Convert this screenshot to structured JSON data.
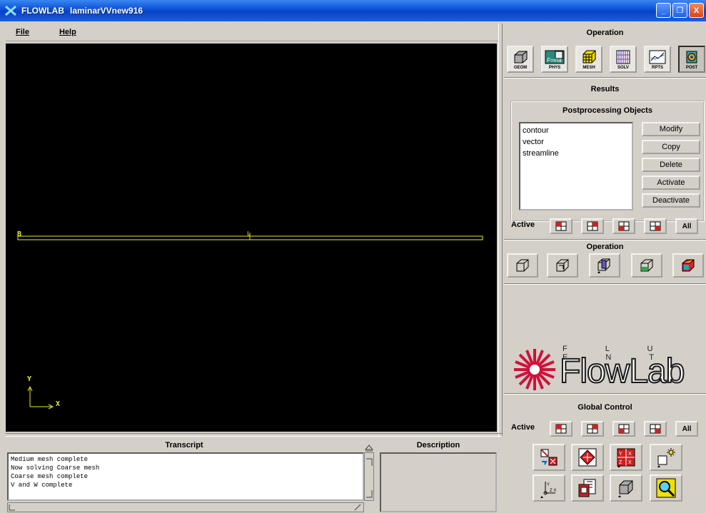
{
  "window": {
    "app_name": "FLOWLAB",
    "file_name": "laminarVVnew916",
    "controls": {
      "minimize": "_",
      "maximize": "❐",
      "close": "X"
    }
  },
  "menubar": {
    "items": [
      "File",
      "Help"
    ]
  },
  "viewport": {
    "point_labels": {
      "left": "B",
      "mid": "L"
    },
    "axes": {
      "y": "Y",
      "x": "X"
    },
    "line_color": "#e8e830",
    "axis_color": "#e8e830",
    "background": "#000000"
  },
  "transcript": {
    "title": "Transcript",
    "lines": [
      "Medium mesh complete",
      "Now solving Coarse mesh",
      "Coarse mesh complete",
      "V and W complete"
    ]
  },
  "description": {
    "title": "Description"
  },
  "right_panel": {
    "operation_title": "Operation",
    "operation_buttons": [
      {
        "label": "GEOM",
        "icon": "cube-icon"
      },
      {
        "label": "PHYS",
        "icon": "physics-icon"
      },
      {
        "label": "MESH",
        "icon": "mesh-cube-icon"
      },
      {
        "label": "SOLV",
        "icon": "solver-grid-icon"
      },
      {
        "label": "RPTS",
        "icon": "reports-chart-icon"
      },
      {
        "label": "POST",
        "icon": "post-icon"
      }
    ],
    "results_title": "Results",
    "postprocessing_title": "Postprocessing Objects",
    "pp_objects": [
      "contour",
      "vector",
      "streamline"
    ],
    "pp_buttons": [
      "Modify",
      "Copy",
      "Delete",
      "Activate",
      "Deactivate"
    ],
    "active_label": "Active",
    "all_label": "All",
    "post_operation_title": "Operation",
    "logo": {
      "top_text": "F L U E N T",
      "main_text": "FlowLab"
    },
    "global_control_title": "Global Control",
    "global_active_label": "Active",
    "global_all_label": "All"
  }
}
